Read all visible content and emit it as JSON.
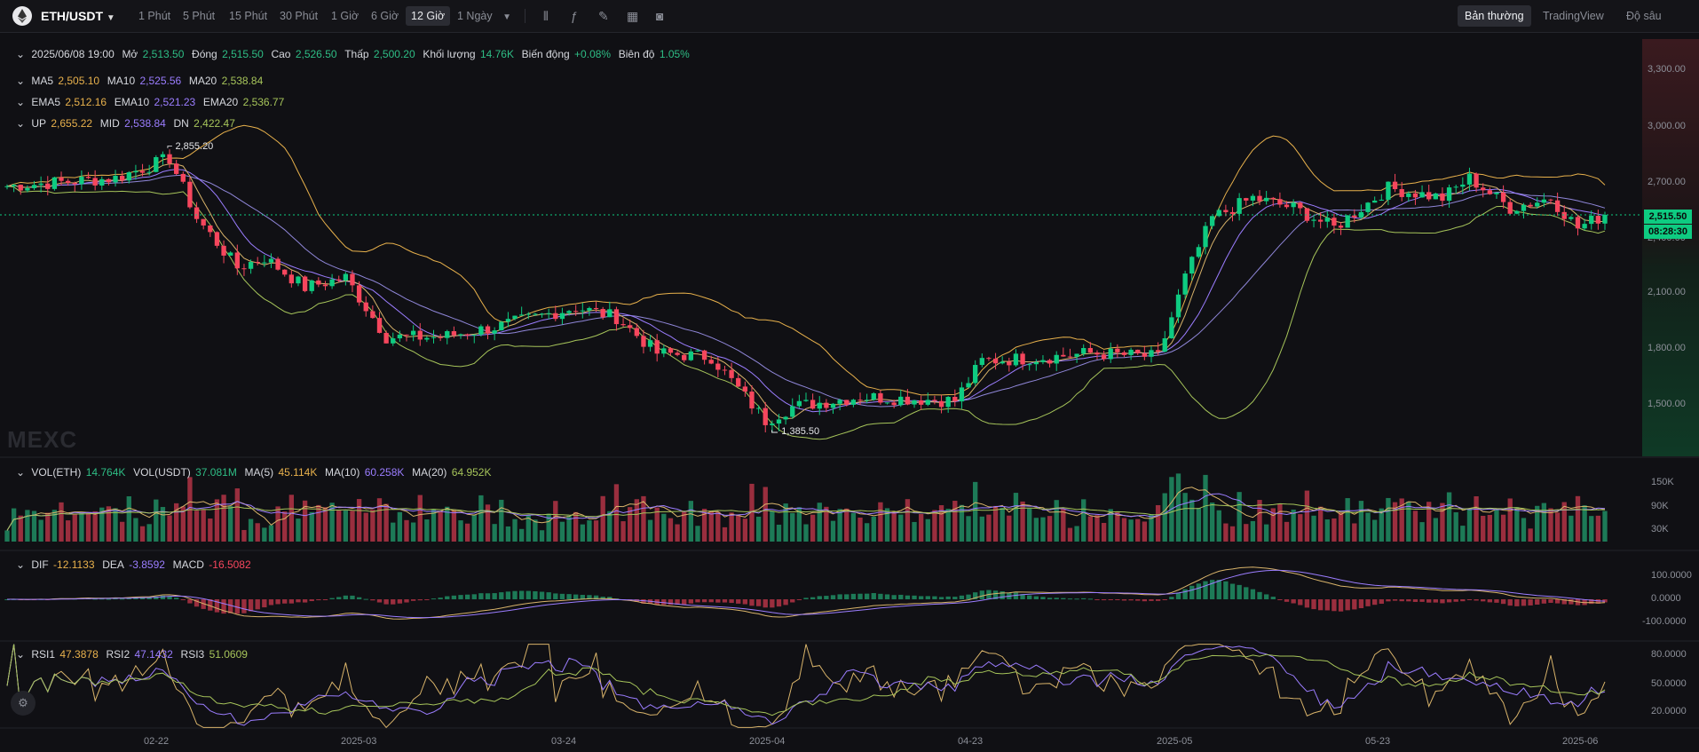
{
  "toolbar": {
    "pair": "ETH/USDT",
    "intervals": [
      "1 Phút",
      "5 Phút",
      "15 Phút",
      "30 Phút",
      "1 Giờ",
      "6 Giờ",
      "12 Giờ",
      "1 Ngày"
    ],
    "active_interval": "12 Giờ",
    "view_tabs": [
      "Bản thường",
      "TradingView",
      "Độ sâu"
    ],
    "active_view": "Bản thường",
    "icons": [
      "indicator-icon",
      "formula-icon",
      "draw-icon",
      "layout-icon",
      "camera-icon"
    ]
  },
  "ohlc": {
    "date": "2025/06/08 19:00",
    "open_label": "Mở",
    "open": "2,513.50",
    "close_label": "Đóng",
    "close": "2,515.50",
    "high_label": "Cao",
    "high": "2,526.50",
    "low_label": "Thấp",
    "low": "2,500.20",
    "volume_label": "Khối lượng",
    "volume": "14.76K",
    "change_label": "Biến động",
    "change": "+0.08%",
    "amplitude_label": "Biên độ",
    "amplitude": "1.05%"
  },
  "ma": {
    "ma5_label": "MA5",
    "ma5": "2,505.10",
    "ma10_label": "MA10",
    "ma10": "2,525.56",
    "ma20_label": "MA20",
    "ma20": "2,538.84"
  },
  "ema": {
    "ema5_label": "EMA5",
    "ema5": "2,512.16",
    "ema10_label": "EMA10",
    "ema10": "2,521.23",
    "ema20_label": "EMA20",
    "ema20": "2,536.77"
  },
  "boll": {
    "up_label": "UP",
    "up": "2,655.22",
    "mid_label": "MID",
    "mid": "2,538.84",
    "dn_label": "DN",
    "dn": "2,422.47"
  },
  "vol": {
    "eth_label": "VOL(ETH)",
    "eth": "14.764K",
    "usdt_label": "VOL(USDT)",
    "usdt": "37.081M",
    "ma5_label": "MA(5)",
    "ma5": "45.114K",
    "ma10_label": "MA(10)",
    "ma10": "60.258K",
    "ma20_label": "MA(20)",
    "ma20": "64.952K"
  },
  "macd": {
    "dif_label": "DIF",
    "dif": "-12.1133",
    "dea_label": "DEA",
    "dea": "-3.8592",
    "macd_label": "MACD",
    "macd": "-16.5082"
  },
  "rsi": {
    "rsi1_label": "RSI1",
    "rsi1": "47.3878",
    "rsi2_label": "RSI2",
    "rsi2": "47.1432",
    "rsi3_label": "RSI3",
    "rsi3": "51.0609"
  },
  "price_axis": [
    "3,300.00",
    "3,000.00",
    "2,700.00",
    "2,400.00",
    "2,100.00",
    "1,800.00",
    "1,500.00"
  ],
  "vol_axis": [
    "150K",
    "90K",
    "30K"
  ],
  "macd_axis": [
    "100.0000",
    "0.0000",
    "-100.0000"
  ],
  "rsi_axis": [
    "80.0000",
    "50.0000",
    "20.0000"
  ],
  "time_axis": [
    "02-22",
    "2025-03",
    "03-24",
    "2025-04",
    "04-23",
    "2025-05",
    "05-23",
    "2025-06"
  ],
  "last_price": "2,515.50",
  "countdown": "08:28:30",
  "high_marker": "2,855.20",
  "low_marker": "1,385.50",
  "watermark": "MEXC",
  "colors": {
    "up": "#0ecb81",
    "down": "#f6465d",
    "ma5": "#e8b14c",
    "ma10": "#9b7dff",
    "ma20": "#a6c45a",
    "boll": "#e8b14c",
    "bg": "#101014"
  },
  "chart_data": {
    "type": "candlestick",
    "interval": "12h",
    "ylim": [
      1300,
      3400
    ],
    "close_anchors": [
      [
        "02-10",
        2660
      ],
      [
        "02-18",
        2700
      ],
      [
        "02-22",
        2800
      ],
      [
        "02-24",
        2500
      ],
      [
        "02-27",
        2250
      ],
      [
        "03-01",
        2300
      ],
      [
        "03-04",
        2150
      ],
      [
        "03-07",
        2200
      ],
      [
        "03-10",
        1900
      ],
      [
        "03-14",
        1900
      ],
      [
        "03-18",
        1950
      ],
      [
        "03-24",
        2050
      ],
      [
        "03-27",
        2000
      ],
      [
        "03-30",
        1820
      ],
      [
        "04-03",
        1800
      ],
      [
        "04-07",
        1480
      ],
      [
        "04-09",
        1550
      ],
      [
        "04-14",
        1600
      ],
      [
        "04-21",
        1580
      ],
      [
        "04-23",
        1780
      ],
      [
        "04-28",
        1800
      ],
      [
        "05-01",
        1820
      ],
      [
        "05-06",
        1800
      ],
      [
        "05-08",
        2200
      ],
      [
        "05-10",
        2500
      ],
      [
        "05-13",
        2600
      ],
      [
        "05-16",
        2550
      ],
      [
        "05-19",
        2450
      ],
      [
        "05-23",
        2650
      ],
      [
        "05-27",
        2600
      ],
      [
        "05-29",
        2700
      ],
      [
        "06-01",
        2550
      ],
      [
        "06-04",
        2600
      ],
      [
        "06-06",
        2450
      ],
      [
        "06-08",
        2515.5
      ]
    ]
  }
}
